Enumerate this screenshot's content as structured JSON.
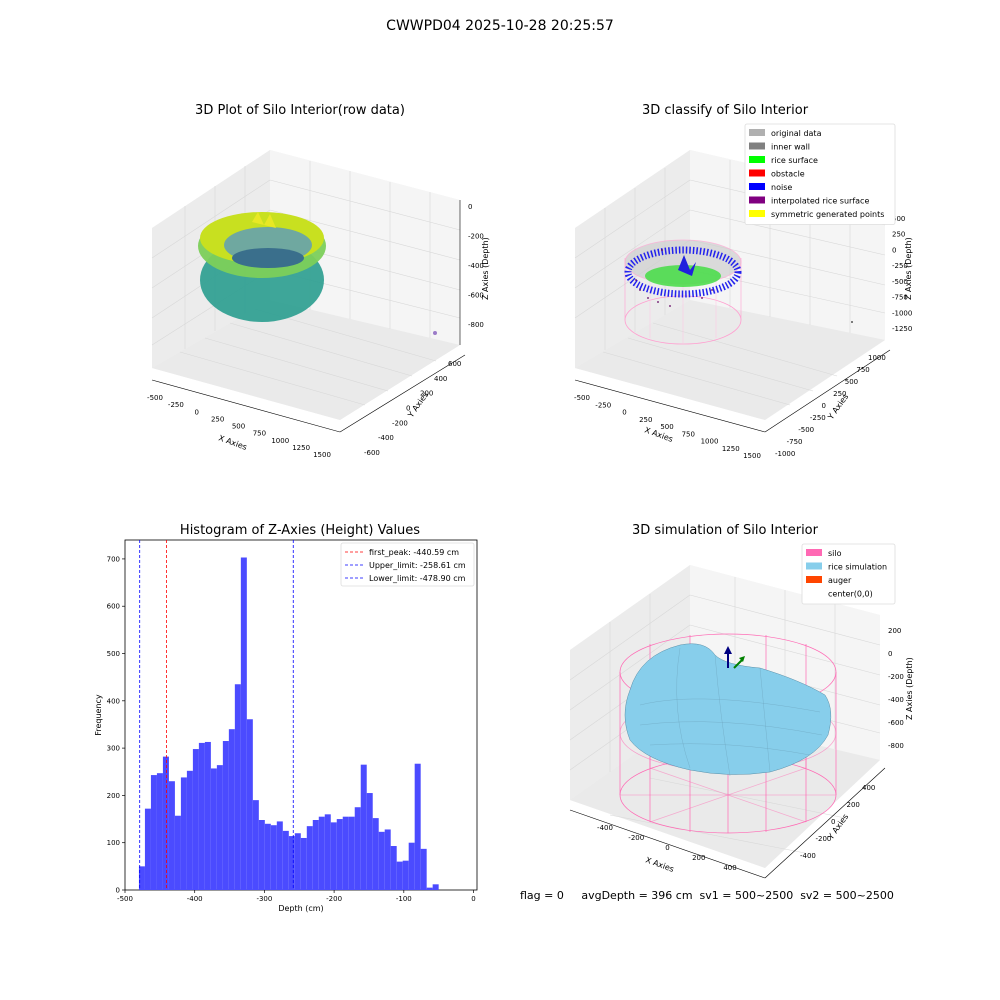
{
  "suptitle": "CWWPD04 2025-10-28 20:25:57",
  "footer": "flag = 0     avgDepth = 396 cm  sv1 = 500~2500  sv2 = 500~2500",
  "panel1": {
    "title": "3D Plot of Silo Interior(row data)",
    "xlabel": "X Axies",
    "ylabel": "Y Axies",
    "zlabel": "Z Axies (Depth)",
    "xticks": [
      "-500",
      "-250",
      "0",
      "250",
      "500",
      "750",
      "1000",
      "1250",
      "1500"
    ],
    "yticks": [
      "600",
      "400",
      "200",
      "0",
      "-200",
      "-400",
      "-600"
    ],
    "zticks": [
      "0",
      "-200",
      "-400",
      "-600",
      "-800"
    ]
  },
  "panel2": {
    "title": "3D classify of Silo Interior",
    "xlabel": "X Axies",
    "ylabel": "Y Axies",
    "zlabel": "Z Axies (Depth)",
    "xticks": [
      "-500",
      "-250",
      "0",
      "250",
      "500",
      "750",
      "1000",
      "1250",
      "1500"
    ],
    "yticks": [
      "1000",
      "750",
      "500",
      "250",
      "0",
      "-250",
      "-500",
      "-750",
      "-1000"
    ],
    "zticks": [
      "500",
      "250",
      "0",
      "-250",
      "-500",
      "-750",
      "-1000",
      "-1250"
    ],
    "legend": [
      {
        "label": "original data",
        "color": "#b0b0b0"
      },
      {
        "label": "inner wall",
        "color": "#808080"
      },
      {
        "label": "rice surface",
        "color": "#00ff00"
      },
      {
        "label": "obstacle",
        "color": "#ff0000"
      },
      {
        "label": "noise",
        "color": "#0000ff"
      },
      {
        "label": "interpolated rice surface",
        "color": "#800080"
      },
      {
        "label": "symmetric generated points",
        "color": "#ffff00"
      }
    ]
  },
  "panel4": {
    "title": "3D simulation of Silo Interior",
    "xlabel": "X Axies",
    "ylabel": "Y Axies",
    "zlabel": "Z Axies (Depth)",
    "xticks": [
      "-400",
      "-200",
      "0",
      "200",
      "400"
    ],
    "yticks": [
      "400",
      "200",
      "0",
      "-200",
      "-400"
    ],
    "zticks": [
      "200",
      "0",
      "-200",
      "-400",
      "-600",
      "-800"
    ],
    "legend": [
      {
        "label": "silo",
        "color": "#ff69b4"
      },
      {
        "label": "rice simulation",
        "color": "#87ceeb"
      },
      {
        "label": "auger",
        "color": "#ff4500"
      },
      {
        "label": "center(0,0)",
        "color": "#ffffff"
      }
    ]
  },
  "chart_data": {
    "type": "bar",
    "title": "Histogram of Z-Axies (Height) Values",
    "xlabel": "Depth (cm)",
    "ylabel": "Frequency",
    "xlim": [
      -500,
      5
    ],
    "ylim": [
      0,
      740
    ],
    "xticks": [
      -500,
      -400,
      -300,
      -200,
      -100,
      0
    ],
    "yticks": [
      0,
      100,
      200,
      300,
      400,
      500,
      600,
      700
    ],
    "bin_start": -480,
    "bin_width": 8.6,
    "values": [
      50,
      172,
      243,
      247,
      282,
      230,
      157,
      238,
      252,
      298,
      311,
      313,
      257,
      264,
      315,
      340,
      435,
      703,
      361,
      190,
      148,
      140,
      137,
      145,
      125,
      114,
      120,
      110,
      135,
      148,
      155,
      160,
      143,
      150,
      155,
      155,
      175,
      265,
      205,
      152,
      123,
      128,
      93,
      60,
      62,
      100,
      267,
      87,
      5,
      12
    ],
    "lines": [
      {
        "label": "first_peak: -440.59 cm",
        "x": -440.59,
        "color": "#ff0000"
      },
      {
        "label": "Upper_limit: -258.61 cm",
        "x": -258.61,
        "color": "#0000ff"
      },
      {
        "label": "Lower_limit: -478.90 cm",
        "x": -478.9,
        "color": "#0000ff"
      }
    ],
    "bar_color": "#4b4bff",
    "legend_position": "top-right"
  }
}
